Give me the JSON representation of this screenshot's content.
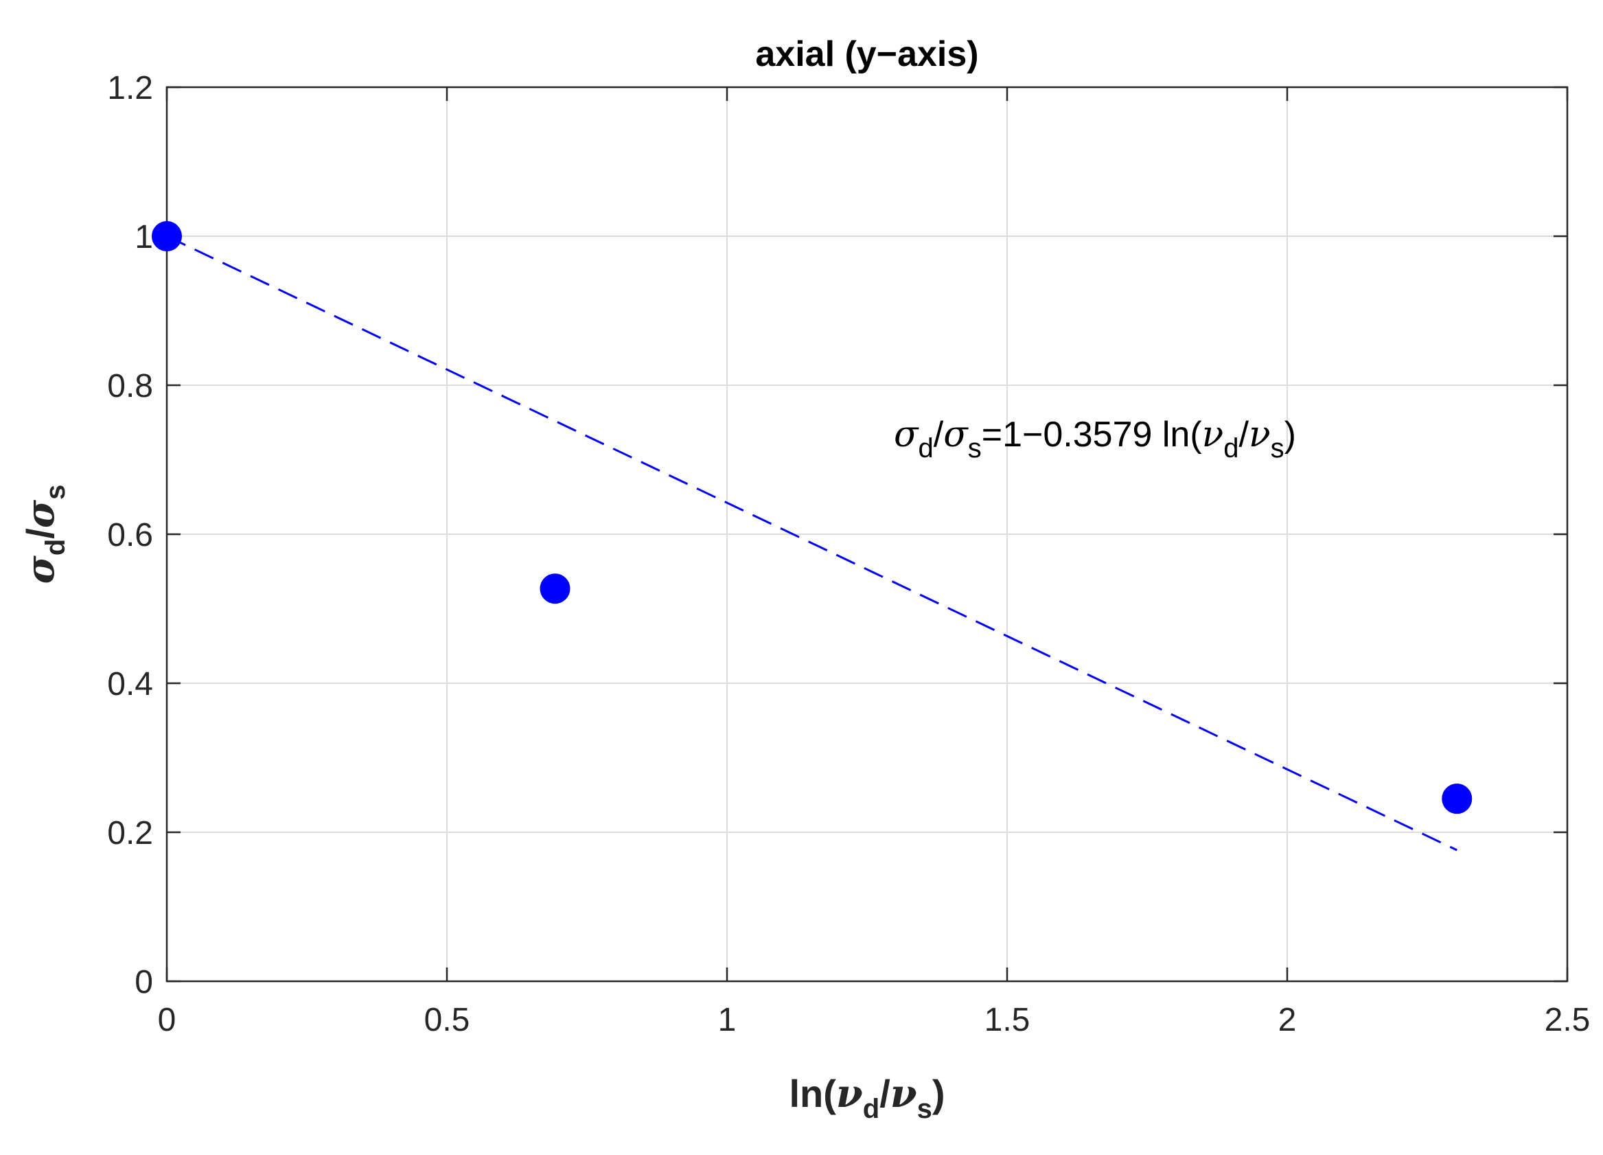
{
  "chart_data": {
    "type": "scatter",
    "title": "axial (y−axis)",
    "xlabel": "ln(ν_d/ν_s)",
    "ylabel": "σ_d/σ_s",
    "xlim": [
      0,
      2.5
    ],
    "ylim": [
      0,
      1.2
    ],
    "xticks": [
      0,
      0.5,
      1,
      1.5,
      2,
      2.5
    ],
    "xtick_labels": [
      "0",
      "0.5",
      "1",
      "1.5",
      "2",
      "2.5"
    ],
    "yticks": [
      0,
      0.2,
      0.4,
      0.6,
      0.8,
      1,
      1.2
    ],
    "ytick_labels": [
      "0",
      "0.2",
      "0.4",
      "0.6",
      "0.8",
      "1",
      "1.2"
    ],
    "grid": true,
    "series": [
      {
        "kind": "points",
        "x": [
          0,
          0.693,
          2.303
        ],
        "y": [
          1.0,
          0.527,
          0.245
        ],
        "color": "#0000ff"
      },
      {
        "kind": "fit-line",
        "style": "dashed",
        "x": [
          0,
          2.303
        ],
        "y": [
          1.0,
          0.176
        ],
        "color": "#0000ff"
      }
    ],
    "annotation": {
      "text": "σ_d/σ_s=1−0.3579 ln(ν_d/ν_s)",
      "x": 1.95,
      "y": 0.72
    }
  },
  "labels": {
    "title": "axial (y−axis)",
    "xlabel_prefix": "ln(",
    "nu": "ν",
    "sub_d": "d",
    "sub_s": "s",
    "slash": "/",
    "close_paren": ")",
    "sigma": "σ",
    "annot_mid": "=1−0.3579 ln(",
    "annot_close": ")"
  }
}
